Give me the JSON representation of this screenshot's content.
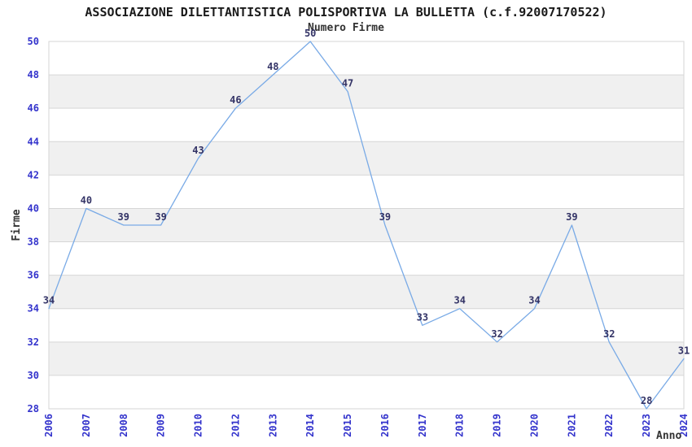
{
  "chart_data": {
    "type": "line",
    "title": "ASSOCIAZIONE DILETTANTISTICA POLISPORTIVA LA BULLETTA (c.f.92007170522)",
    "subtitle": "Numero Firme",
    "xlabel": "Anno",
    "ylabel": "Firme",
    "categories": [
      "2006",
      "2007",
      "2008",
      "2009",
      "2010",
      "2012",
      "2013",
      "2014",
      "2015",
      "2016",
      "2017",
      "2018",
      "2019",
      "2020",
      "2021",
      "2022",
      "2023",
      "2024"
    ],
    "values": [
      34,
      40,
      39,
      39,
      43,
      46,
      48,
      50,
      47,
      39,
      33,
      34,
      32,
      34,
      39,
      32,
      28,
      31
    ],
    "ylim": [
      28,
      50
    ],
    "ytick_step": 2,
    "grid": "horizontal-only",
    "legend": "none",
    "band_pattern": "alternating horizontal stripes every 2 units, gray bands at 46-48, 42-44, 38-40, 34-36, 30-32",
    "colors": {
      "line": "#79aae6",
      "data_label": "#333366",
      "tick_label": "#3333cc",
      "band": "#f0f0f0",
      "grid": "#d6d6d6",
      "title": "#1a1a1a",
      "axis_title": "#333333",
      "background": "#ffffff"
    }
  }
}
